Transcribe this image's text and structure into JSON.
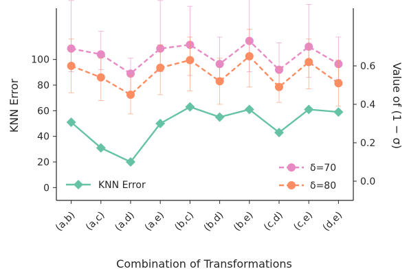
{
  "chart_data": {
    "type": "line",
    "categories": [
      "(a,b)",
      "(a,c)",
      "(a,d)",
      "(a,e)",
      "(b,c)",
      "(b,d)",
      "(b,e)",
      "(c,d)",
      "(c,e)",
      "(d,e)"
    ],
    "xlabel": "Combination of Transformations",
    "ylabel": "KNN Error",
    "ylabel_right": "Value of  (1 − σ)",
    "ylim": [
      -10,
      140
    ],
    "yticks": [
      0,
      20,
      40,
      60,
      80,
      100
    ],
    "ylim_right": [
      -0.1,
      0.9
    ],
    "yticks_right": [
      0.0,
      0.2,
      0.4,
      0.6
    ],
    "right_tick_labels": [
      "0.0",
      "0.2",
      "0.4",
      "0.6"
    ],
    "grid": false,
    "series_left": [
      {
        "name": "KNN Error",
        "axis": "left",
        "color": "#66c2a5",
        "marker": "diamond",
        "line": "solid",
        "values": [
          51,
          31,
          20,
          50,
          63,
          55,
          61,
          43,
          61,
          59
        ]
      }
    ],
    "series_right": [
      {
        "name": "δ=70",
        "axis": "right",
        "color": "#e78ac3",
        "marker": "circle",
        "line": "dashed",
        "values": [
          0.69,
          0.66,
          0.56,
          0.69,
          0.71,
          0.61,
          0.73,
          0.58,
          0.7,
          0.61
        ],
        "err_low": [
          0.12,
          0.08,
          0.1,
          0.12,
          0.16,
          0.08,
          0.16,
          0.08,
          0.16,
          0.08
        ],
        "err_high": [
          0.25,
          0.12,
          0.08,
          0.25,
          0.2,
          0.14,
          0.25,
          0.14,
          0.22,
          0.14
        ]
      },
      {
        "name": "δ=80",
        "axis": "right",
        "color": "#fc8d62",
        "marker": "circle",
        "line": "dashed",
        "values": [
          0.6,
          0.54,
          0.45,
          0.59,
          0.63,
          0.52,
          0.65,
          0.49,
          0.62,
          0.51
        ],
        "err_low": [
          0.14,
          0.12,
          0.1,
          0.14,
          0.16,
          0.12,
          0.16,
          0.08,
          0.14,
          0.12
        ],
        "err_high": [
          0.14,
          0.1,
          0.1,
          0.12,
          0.12,
          0.12,
          0.14,
          0.1,
          0.12,
          0.12
        ]
      }
    ],
    "legend": [
      {
        "label": "KNN Error",
        "placement": "lower-left"
      },
      {
        "label": "δ=70",
        "placement": "lower-right"
      },
      {
        "label": "δ=80",
        "placement": "lower-right"
      }
    ]
  }
}
